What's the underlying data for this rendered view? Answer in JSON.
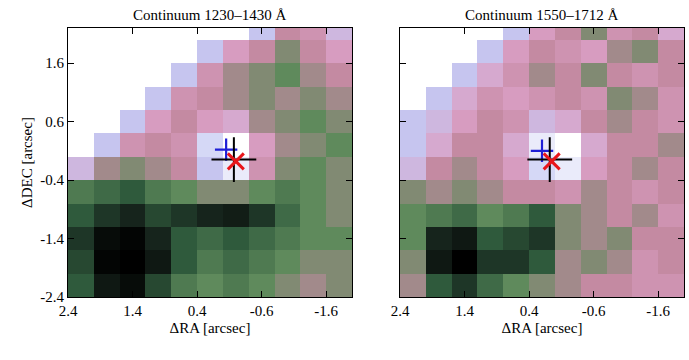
{
  "chart_data": [
    {
      "type": "heatmap",
      "title": "Continuum 1230–1430 Å",
      "x_label": "ΔRA [arcsec]",
      "y_label": "ΔDEC [arcsec]",
      "xlim": [
        2.4,
        -2.0
      ],
      "ylim": [
        -2.4,
        2.2
      ],
      "xticks": [
        2.4,
        1.4,
        0.4,
        -0.6,
        -1.6
      ],
      "yticks": [
        -2.4,
        -1.4,
        -0.4,
        0.6,
        1.6
      ],
      "x": [
        2.2,
        1.8,
        1.4,
        1.0,
        0.6,
        0.2,
        -0.2,
        -0.6,
        -1.0,
        -1.4,
        -1.8
      ],
      "y": [
        -2.2,
        -1.8,
        -1.4,
        -1.0,
        -0.6,
        -0.2,
        0.2,
        0.6,
        1.0,
        1.4,
        1.8,
        2.2
      ],
      "zlim": [
        0,
        1
      ],
      "z": [
        [
          0.3,
          0.1,
          0.05,
          0.25,
          0.4,
          0.45,
          0.4,
          0.45,
          0.5,
          0.55,
          0.5
        ],
        [
          0.25,
          0.02,
          0.0,
          0.1,
          0.3,
          0.4,
          0.35,
          0.4,
          0.45,
          0.5,
          0.5
        ],
        [
          0.2,
          0.05,
          0.02,
          0.15,
          0.3,
          0.35,
          0.3,
          0.35,
          0.4,
          0.45,
          0.45
        ],
        [
          0.3,
          0.2,
          0.15,
          0.25,
          0.2,
          0.15,
          0.12,
          0.2,
          0.35,
          0.45,
          0.5
        ],
        [
          0.4,
          0.35,
          0.3,
          0.4,
          0.45,
          0.5,
          0.5,
          0.45,
          0.4,
          0.45,
          0.5
        ],
        [
          0.8,
          0.55,
          0.5,
          0.55,
          0.6,
          0.85,
          0.95,
          0.65,
          0.5,
          0.45,
          0.5
        ],
        [
          null,
          0.85,
          0.65,
          0.6,
          0.65,
          0.9,
          1.0,
          0.7,
          0.55,
          0.5,
          0.45
        ],
        [
          null,
          null,
          0.85,
          0.7,
          0.6,
          0.7,
          0.75,
          0.55,
          0.5,
          0.45,
          0.5
        ],
        [
          null,
          null,
          null,
          0.85,
          0.65,
          0.6,
          0.55,
          0.5,
          0.55,
          0.5,
          0.55
        ],
        [
          null,
          null,
          null,
          null,
          0.85,
          0.65,
          0.55,
          0.5,
          0.45,
          0.55,
          0.6
        ],
        [
          null,
          null,
          null,
          null,
          null,
          0.85,
          0.7,
          0.6,
          0.5,
          0.6,
          0.7
        ],
        [
          null,
          null,
          null,
          null,
          null,
          null,
          null,
          0.85,
          0.6,
          0.65,
          0.8
        ]
      ],
      "markers": [
        {
          "x": -0.05,
          "y": 0.12,
          "color": "#1f1fd6",
          "marker": "plus"
        },
        {
          "x": -0.17,
          "y": -0.05,
          "color": "#000000",
          "marker": "big_plus"
        },
        {
          "x": -0.2,
          "y": -0.08,
          "color": "#e8161b",
          "marker": "x"
        }
      ]
    },
    {
      "type": "heatmap",
      "title": "Continuum 1550–1712 Å",
      "x_label": "ΔRA [arcsec]",
      "xlim": [
        2.4,
        -2.0
      ],
      "ylim": [
        -2.4,
        2.2
      ],
      "xticks": [
        2.4,
        1.4,
        0.4,
        -0.6,
        -1.6
      ],
      "yticks": [
        -2.4,
        -1.4,
        -0.4,
        0.6,
        1.6
      ],
      "tick_labels": "x",
      "x": [
        2.2,
        1.8,
        1.4,
        1.0,
        0.6,
        0.2,
        -0.2,
        -0.6,
        -1.0,
        -1.4,
        -1.8
      ],
      "y": [
        -2.2,
        -1.8,
        -1.4,
        -1.0,
        -0.6,
        -0.2,
        0.2,
        0.6,
        1.0,
        1.4,
        1.8,
        2.2
      ],
      "zlim": [
        0,
        1
      ],
      "z": [
        [
          0.55,
          0.3,
          0.2,
          0.35,
          0.45,
          0.5,
          0.55,
          0.6,
          0.6,
          0.65,
          0.65
        ],
        [
          0.5,
          0.1,
          0.0,
          0.2,
          0.2,
          0.3,
          0.55,
          0.5,
          0.55,
          0.65,
          0.6
        ],
        [
          0.45,
          0.15,
          0.1,
          0.3,
          0.25,
          0.2,
          0.5,
          0.55,
          0.5,
          0.6,
          0.6
        ],
        [
          0.45,
          0.4,
          0.35,
          0.45,
          0.4,
          0.3,
          0.5,
          0.55,
          0.6,
          0.55,
          0.65
        ],
        [
          0.5,
          0.55,
          0.5,
          0.55,
          0.6,
          0.6,
          0.65,
          0.55,
          0.6,
          0.65,
          0.6
        ],
        [
          0.8,
          0.6,
          0.55,
          0.6,
          0.7,
          0.9,
          0.95,
          0.7,
          0.6,
          0.55,
          0.6
        ],
        [
          0.85,
          0.75,
          0.6,
          0.6,
          0.75,
          0.95,
          1.0,
          0.75,
          0.6,
          0.6,
          0.55
        ],
        [
          0.85,
          0.8,
          0.7,
          0.6,
          0.65,
          0.8,
          0.75,
          0.6,
          0.55,
          0.6,
          0.65
        ],
        [
          null,
          0.85,
          0.75,
          0.65,
          0.7,
          0.65,
          0.6,
          0.65,
          0.5,
          0.55,
          0.65
        ],
        [
          null,
          null,
          0.85,
          0.75,
          0.65,
          0.55,
          0.6,
          0.5,
          0.6,
          0.65,
          0.6
        ],
        [
          null,
          null,
          null,
          0.85,
          0.7,
          0.6,
          0.65,
          0.7,
          0.55,
          0.5,
          0.6
        ],
        [
          null,
          null,
          null,
          null,
          0.85,
          0.7,
          0.6,
          0.5,
          0.65,
          0.6,
          0.75
        ]
      ],
      "markers": [
        {
          "x": 0.2,
          "y": 0.1,
          "color": "#1f1fd6",
          "marker": "plus"
        },
        {
          "x": 0.08,
          "y": -0.05,
          "color": "#000000",
          "marker": "big_plus"
        },
        {
          "x": 0.05,
          "y": -0.08,
          "color": "#e8161b",
          "marker": "x"
        }
      ]
    }
  ]
}
